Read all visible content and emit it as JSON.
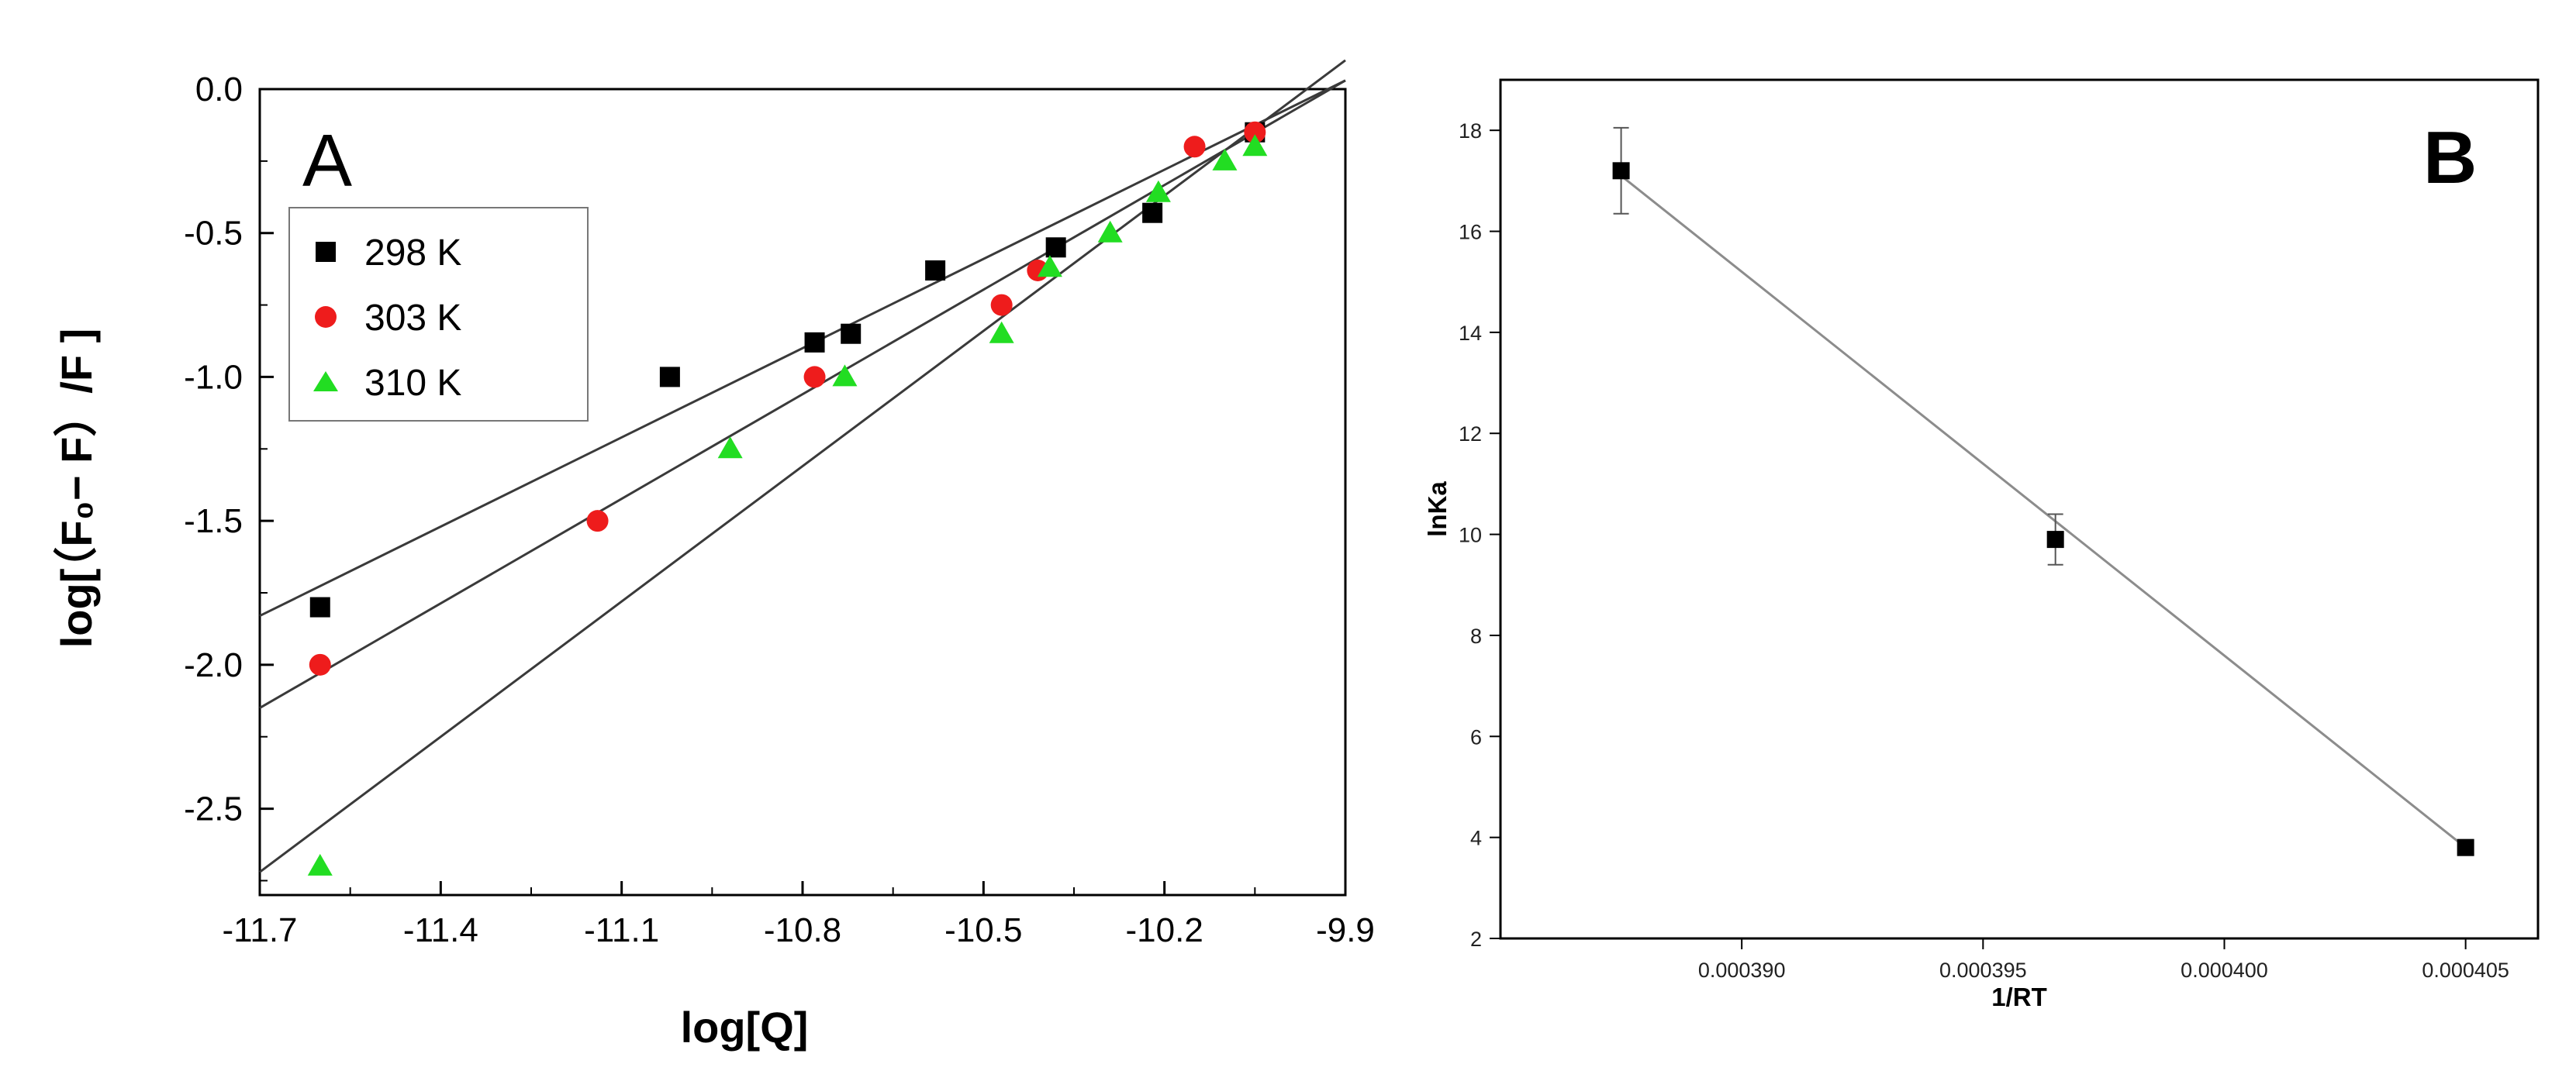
{
  "chart_data": [
    {
      "panel": "A",
      "type": "scatter",
      "xlabel": "log[Q]",
      "ylabel": "log[（F₀− F）/F ]",
      "xlim": [
        -11.7,
        -9.9
      ],
      "ylim": [
        -2.8,
        0.0
      ],
      "xticks": [
        -11.7,
        -11.4,
        -11.1,
        -10.8,
        -10.5,
        -10.2,
        -9.9
      ],
      "yticks": [
        0.0,
        -0.5,
        -1.0,
        -1.5,
        -2.0,
        -2.5
      ],
      "xtick_labels": [
        "-11.7",
        "-11.4",
        "-11.1",
        "-10.8",
        "-10.5",
        "-10.2",
        "-9.9"
      ],
      "ytick_labels": [
        "0.0",
        "-0.5",
        "-1.0",
        "-1.5",
        "-2.0",
        "-2.5"
      ],
      "legend_position": "upper-left",
      "series": [
        {
          "name": "298 K",
          "marker": "square",
          "color": "#000000",
          "x": [
            -11.6,
            -11.02,
            -10.78,
            -10.72,
            -10.58,
            -10.38,
            -10.22,
            -10.05
          ],
          "y": [
            -1.8,
            -1.0,
            -0.88,
            -0.85,
            -0.63,
            -0.55,
            -0.43,
            -0.15
          ],
          "fit": [
            [
              -11.7,
              -1.83
            ],
            [
              -9.9,
              0.03
            ]
          ]
        },
        {
          "name": "303 K",
          "marker": "circle",
          "color": "#ee1c1c",
          "x": [
            -11.6,
            -11.14,
            -10.78,
            -10.47,
            -10.41,
            -10.15,
            -10.05
          ],
          "y": [
            -2.0,
            -1.5,
            -1.0,
            -0.75,
            -0.63,
            -0.2,
            -0.15
          ],
          "fit": [
            [
              -11.7,
              -2.15
            ],
            [
              -9.9,
              0.03
            ]
          ]
        },
        {
          "name": "310 K",
          "marker": "triangle",
          "color": "#22dd22",
          "x": [
            -11.6,
            -10.92,
            -10.73,
            -10.47,
            -10.39,
            -10.29,
            -10.21,
            -10.1,
            -10.05
          ],
          "y": [
            -2.7,
            -1.25,
            -1.0,
            -0.85,
            -0.62,
            -0.5,
            -0.36,
            -0.25,
            -0.2
          ],
          "fit": [
            [
              -11.7,
              -2.72
            ],
            [
              -9.9,
              0.1
            ]
          ]
        }
      ]
    },
    {
      "panel": "B",
      "type": "scatter",
      "xlabel": "1/RT",
      "ylabel": "lnKa",
      "xlim": [
        0.000385,
        0.0004065
      ],
      "ylim": [
        2,
        19
      ],
      "xticks": [
        0.00039,
        0.000395,
        0.0004,
        0.000405
      ],
      "xtick_labels": [
        "0.000390",
        "0.000395",
        "0.000400",
        "0.000405"
      ],
      "yticks": [
        2,
        4,
        6,
        8,
        10,
        12,
        14,
        16,
        18
      ],
      "ytick_labels": [
        "2",
        "4",
        "6",
        "8",
        "10",
        "12",
        "14",
        "16",
        "18"
      ],
      "series": [
        {
          "marker": "square",
          "color": "#000000",
          "x": [
            0.0003875,
            0.0003965,
            0.000405
          ],
          "y": [
            17.2,
            9.9,
            3.8
          ],
          "yerr": [
            0.85,
            0.5,
            0.15
          ],
          "fit": [
            [
              0.0003875,
              17.1
            ],
            [
              0.000405,
              3.8
            ]
          ],
          "fit_color": "#8c8c8c"
        }
      ]
    }
  ]
}
